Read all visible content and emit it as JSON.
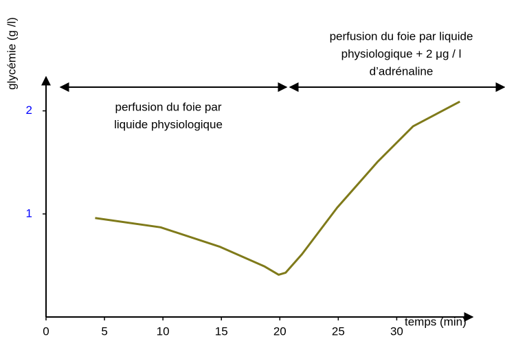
{
  "chart_data": {
    "type": "line",
    "y_label": "glycémie (g /l)",
    "x_label": "temps (min)",
    "x": [
      4.2,
      9.8,
      14.9,
      18.7,
      19.9,
      20.5,
      21.9,
      24.9,
      28.4,
      31.4,
      35.4
    ],
    "values": [
      0.96,
      0.87,
      0.68,
      0.49,
      0.41,
      0.43,
      0.61,
      1.06,
      1.51,
      1.85,
      2.09
    ],
    "color": "#7f7a1a",
    "xlim": [
      0,
      36.5
    ],
    "xticks": [
      0,
      5,
      10,
      15,
      20,
      25,
      30
    ],
    "ylim": [
      0,
      2.33
    ],
    "yticks": [
      1,
      2
    ],
    "ytick_color": "#0000ff",
    "annotations": [
      {
        "lines": [
          "perfusion du foie par",
          "liquide physiologique"
        ]
      },
      {
        "lines": [
          "perfusion du foie par liquide",
          "physiologique + 2 μg / l",
          "d’adrénaline"
        ]
      }
    ]
  }
}
